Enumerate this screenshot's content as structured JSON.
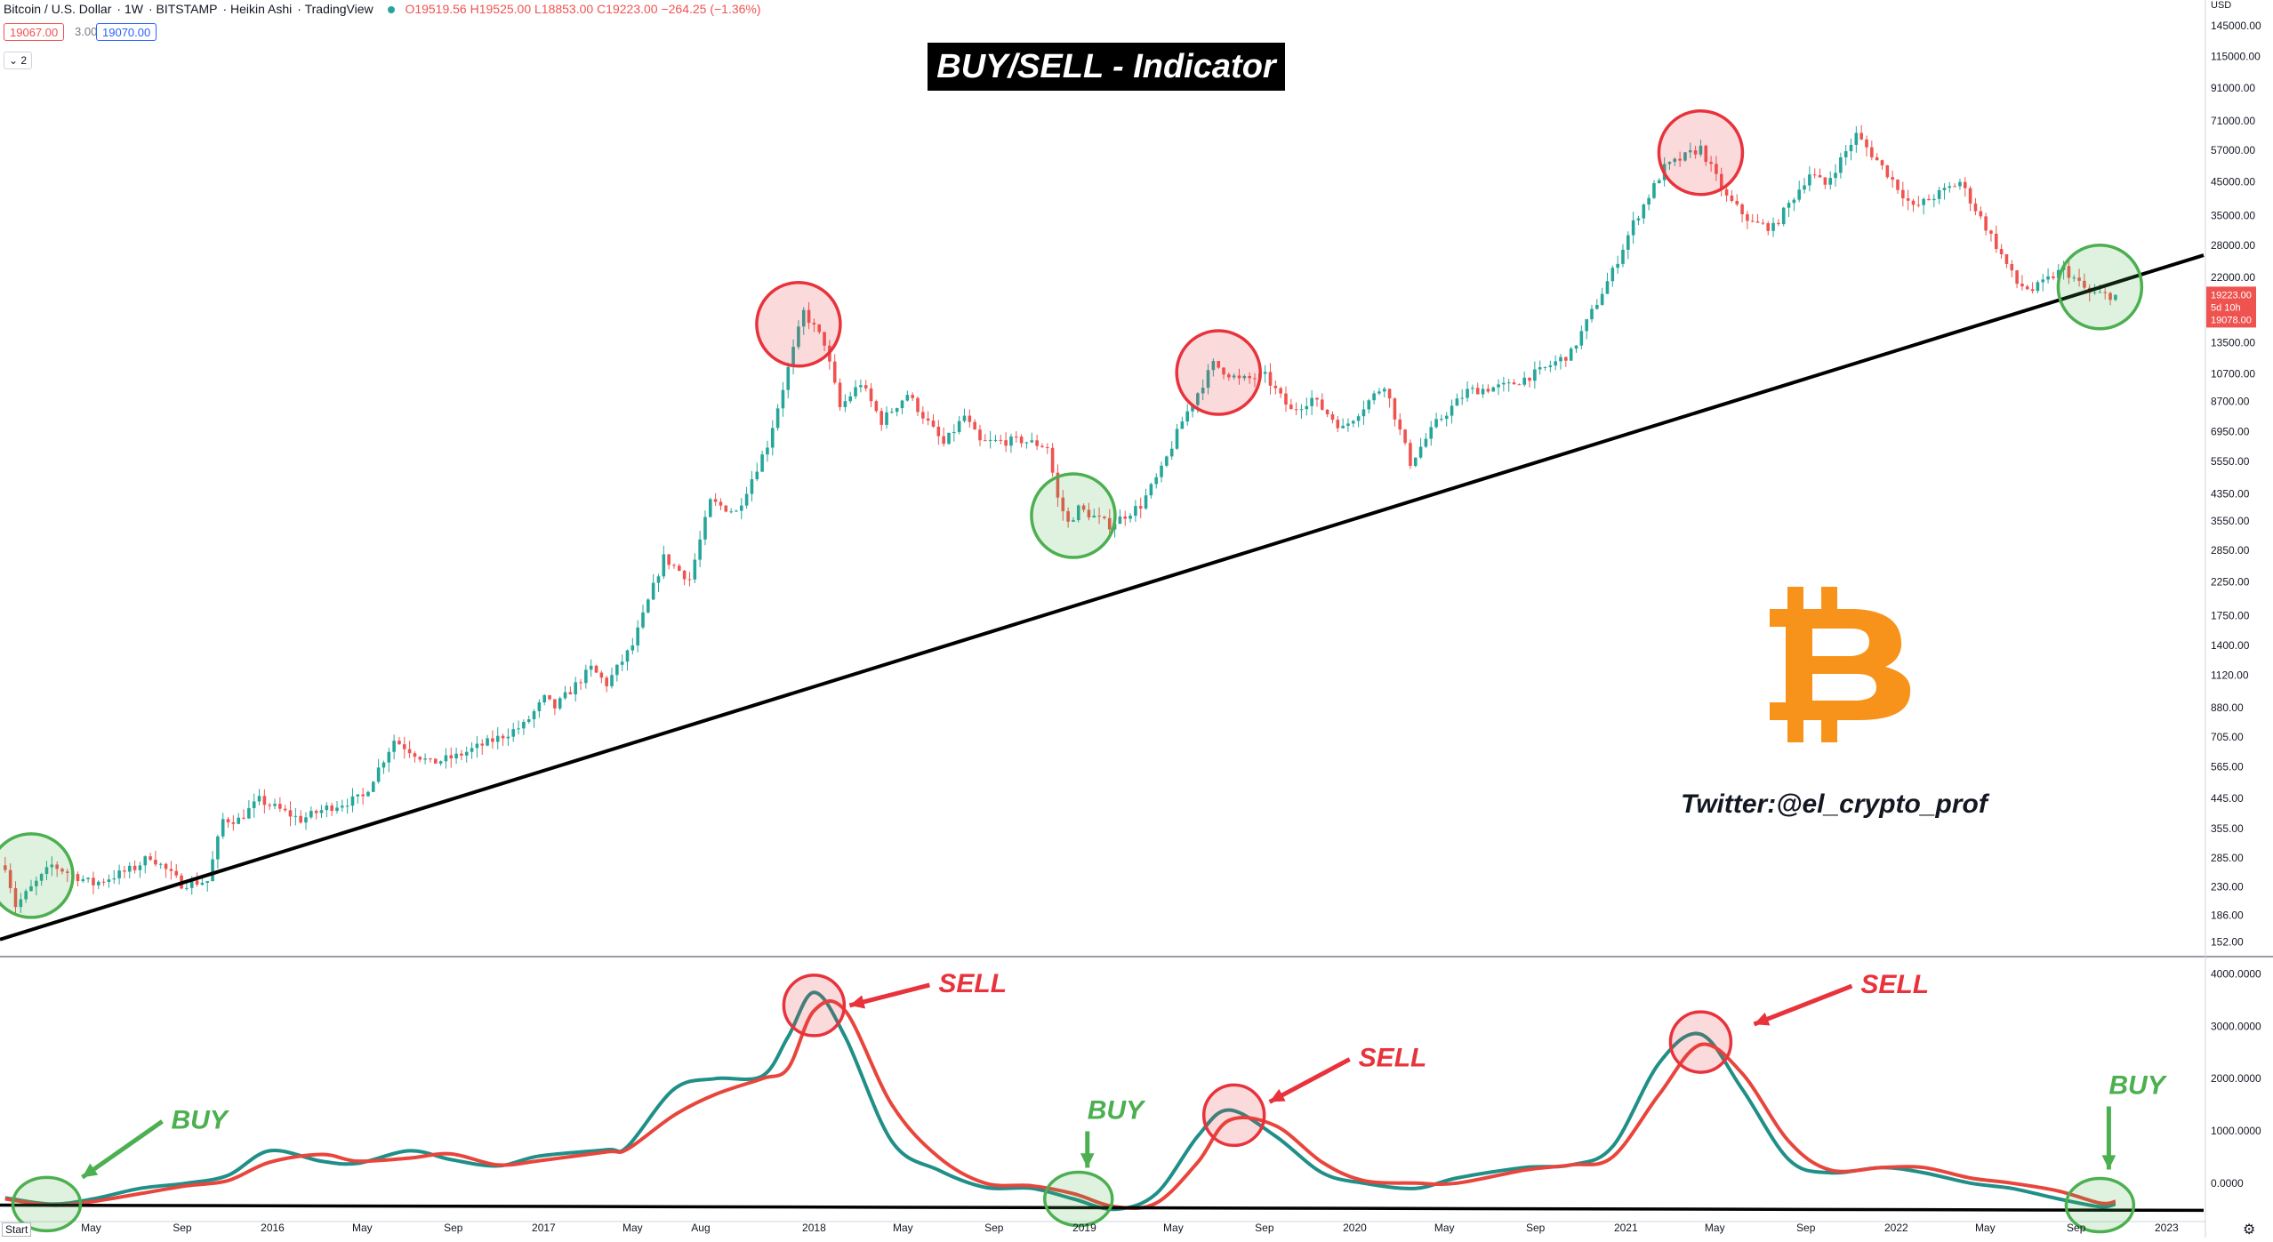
{
  "header": {
    "symbol": "Bitcoin / U.S. Dollar",
    "interval": "1W",
    "exchange": "BITSTAMP",
    "chart_style": "Heikin Ashi",
    "source": "TradingView",
    "ohlc": "O19519.56 H19525.00 L18853.00 C19223.00 −264.25 (−1.36%)"
  },
  "quotes": {
    "bid": "19067.00",
    "spread": "3.00",
    "ask": "19070.00"
  },
  "indicator_toggle": "2",
  "title": "BUY/SELL - Indicator",
  "twitter": "Twitter:@el_crypto_prof",
  "start_button": "Start",
  "currency": "USD",
  "last_price": {
    "price": "19223.00",
    "countdown": "5d 10h",
    "low": "19078.00"
  },
  "colors": {
    "up": "#26a69a",
    "down": "#ef5350",
    "trendline": "#000000",
    "sell_circle": "#e8323c",
    "buy_circle": "#4caf50",
    "bitcoin": "#f7931a",
    "osc_fast": "#1f8f87",
    "osc_slow": "#e8453c"
  },
  "chart_data": [
    {
      "type": "candlestick",
      "title": "BUY/SELL - Indicator",
      "yscale": "log",
      "ylim": [
        140,
        160000
      ],
      "y_tick_labels": [
        "145000.00",
        "115000.00",
        "91000.00",
        "71000.00",
        "57000.00",
        "45000.00",
        "35000.00",
        "28000.00",
        "22000.00",
        "13500.00",
        "10700.00",
        "8700.00",
        "6950.00",
        "5550.00",
        "4350.00",
        "3550.00",
        "2850.00",
        "2250.00",
        "1750.00",
        "1400.00",
        "1120.00",
        "880.00",
        "705.00",
        "565.00",
        "445.00",
        "355.00",
        "285.00",
        "230.00",
        "186.00",
        "152.00"
      ],
      "x_tick_labels": [
        "May",
        "Sep",
        "2016",
        "May",
        "Sep",
        "2017",
        "May",
        "Aug",
        "2018",
        "May",
        "Sep",
        "2019",
        "May",
        "Sep",
        "2020",
        "May",
        "Sep",
        "2021",
        "May",
        "Sep",
        "2022",
        "May",
        "Sep",
        "2023"
      ],
      "price_anchors": [
        {
          "date": "2015-01-05",
          "price": 270
        },
        {
          "date": "2015-01-19",
          "price": 200
        },
        {
          "date": "2015-03-09",
          "price": 270
        },
        {
          "date": "2015-05-04",
          "price": 235
        },
        {
          "date": "2015-06-29",
          "price": 265
        },
        {
          "date": "2015-07-20",
          "price": 290
        },
        {
          "date": "2015-08-31",
          "price": 235
        },
        {
          "date": "2015-10-05",
          "price": 240
        },
        {
          "date": "2015-10-26",
          "price": 380
        },
        {
          "date": "2015-11-16",
          "price": 380
        },
        {
          "date": "2015-12-14",
          "price": 440
        },
        {
          "date": "2016-02-08",
          "price": 380
        },
        {
          "date": "2016-03-14",
          "price": 415
        },
        {
          "date": "2016-05-02",
          "price": 450
        },
        {
          "date": "2016-06-13",
          "price": 690
        },
        {
          "date": "2016-08-01",
          "price": 580
        },
        {
          "date": "2016-09-05",
          "price": 610
        },
        {
          "date": "2016-10-31",
          "price": 700
        },
        {
          "date": "2016-12-05",
          "price": 770
        },
        {
          "date": "2017-01-02",
          "price": 940
        },
        {
          "date": "2017-01-16",
          "price": 880
        },
        {
          "date": "2017-03-06",
          "price": 1180
        },
        {
          "date": "2017-03-27",
          "price": 1050
        },
        {
          "date": "2017-05-01",
          "price": 1400
        },
        {
          "date": "2017-06-12",
          "price": 2700
        },
        {
          "date": "2017-07-17",
          "price": 2300
        },
        {
          "date": "2017-08-14",
          "price": 4100
        },
        {
          "date": "2017-09-18",
          "price": 3800
        },
        {
          "date": "2017-10-30",
          "price": 6300
        },
        {
          "date": "2017-12-18",
          "price": 17000
        },
        {
          "date": "2018-01-15",
          "price": 13500
        },
        {
          "date": "2018-02-05",
          "price": 8300
        },
        {
          "date": "2018-03-05",
          "price": 10000
        },
        {
          "date": "2018-04-02",
          "price": 7500
        },
        {
          "date": "2018-05-07",
          "price": 9200
        },
        {
          "date": "2018-06-25",
          "price": 6300
        },
        {
          "date": "2018-07-23",
          "price": 7800
        },
        {
          "date": "2018-08-13",
          "price": 6400
        },
        {
          "date": "2018-10-08",
          "price": 6500
        },
        {
          "date": "2018-11-12",
          "price": 6200
        },
        {
          "date": "2018-11-26",
          "price": 4200
        },
        {
          "date": "2018-12-10",
          "price": 3500
        },
        {
          "date": "2018-12-24",
          "price": 3900
        },
        {
          "date": "2019-02-04",
          "price": 3450
        },
        {
          "date": "2019-03-18",
          "price": 4000
        },
        {
          "date": "2019-04-15",
          "price": 5200
        },
        {
          "date": "2019-05-13",
          "price": 7500
        },
        {
          "date": "2019-06-24",
          "price": 11500
        },
        {
          "date": "2019-07-29",
          "price": 10200
        },
        {
          "date": "2019-09-02",
          "price": 10500
        },
        {
          "date": "2019-10-07",
          "price": 8100
        },
        {
          "date": "2019-11-04",
          "price": 8900
        },
        {
          "date": "2019-12-16",
          "price": 7100
        },
        {
          "date": "2020-02-10",
          "price": 9900
        },
        {
          "date": "2020-03-16",
          "price": 5500
        },
        {
          "date": "2020-04-20",
          "price": 7400
        },
        {
          "date": "2020-06-01",
          "price": 9400
        },
        {
          "date": "2020-07-27",
          "price": 9800
        },
        {
          "date": "2020-09-07",
          "price": 10900
        },
        {
          "date": "2020-10-19",
          "price": 12500
        },
        {
          "date": "2020-12-14",
          "price": 23000
        },
        {
          "date": "2021-01-11",
          "price": 33000
        },
        {
          "date": "2021-02-22",
          "price": 50000
        },
        {
          "date": "2021-04-12",
          "price": 58000
        },
        {
          "date": "2021-05-17",
          "price": 40000
        },
        {
          "date": "2021-06-21",
          "price": 33000
        },
        {
          "date": "2021-07-19",
          "price": 32000
        },
        {
          "date": "2021-09-06",
          "price": 48000
        },
        {
          "date": "2021-09-27",
          "price": 44000
        },
        {
          "date": "2021-11-08",
          "price": 64000
        },
        {
          "date": "2021-12-20",
          "price": 48000
        },
        {
          "date": "2022-01-24",
          "price": 37000
        },
        {
          "date": "2022-03-28",
          "price": 45000
        },
        {
          "date": "2022-05-09",
          "price": 30000
        },
        {
          "date": "2022-06-13",
          "price": 21000
        },
        {
          "date": "2022-07-04",
          "price": 20000
        },
        {
          "date": "2022-08-15",
          "price": 23500
        },
        {
          "date": "2022-09-19",
          "price": 19500
        },
        {
          "date": "2022-10-24",
          "price": 19200
        }
      ],
      "trendline": [
        {
          "date": "2014-12-29",
          "price": 155
        },
        {
          "date": "2023-02-20",
          "price": 26000
        }
      ],
      "annotations": [
        {
          "kind": "sell",
          "date": "2017-12-11",
          "price": 15500
        },
        {
          "kind": "buy",
          "date": "2018-12-17",
          "price": 3700
        },
        {
          "kind": "sell",
          "date": "2019-07-01",
          "price": 10800
        },
        {
          "kind": "sell",
          "date": "2021-04-12",
          "price": 56000
        },
        {
          "kind": "buy",
          "date": "2022-10-03",
          "price": 20500
        },
        {
          "kind": "buy",
          "date": "2015-02-09",
          "price": 250
        }
      ]
    },
    {
      "type": "line",
      "title": "",
      "ylim": [
        -700,
        4300
      ],
      "y_tick_labels": [
        "4000.0000",
        "3000.0000",
        "2000.0000",
        "1000.0000",
        "0.0000"
      ],
      "series": [
        {
          "color": "#1f8f87",
          "points": [
            {
              "date": "2015-01-05",
              "value": -280
            },
            {
              "date": "2015-03-09",
              "value": -400
            },
            {
              "date": "2015-05-04",
              "value": -300
            },
            {
              "date": "2015-07-06",
              "value": -100
            },
            {
              "date": "2015-09-07",
              "value": 0
            },
            {
              "date": "2015-11-02",
              "value": 150
            },
            {
              "date": "2015-12-28",
              "value": 620
            },
            {
              "date": "2016-03-07",
              "value": 420
            },
            {
              "date": "2016-04-25",
              "value": 380
            },
            {
              "date": "2016-07-04",
              "value": 620
            },
            {
              "date": "2016-08-29",
              "value": 450
            },
            {
              "date": "2016-10-31",
              "value": 330
            },
            {
              "date": "2016-12-26",
              "value": 520
            },
            {
              "date": "2017-03-27",
              "value": 640
            },
            {
              "date": "2017-04-24",
              "value": 700
            },
            {
              "date": "2017-06-26",
              "value": 1800
            },
            {
              "date": "2017-08-21",
              "value": 2000
            },
            {
              "date": "2017-10-23",
              "value": 2050
            },
            {
              "date": "2017-11-27",
              "value": 2800
            },
            {
              "date": "2018-01-01",
              "value": 3650
            },
            {
              "date": "2018-02-12",
              "value": 2800
            },
            {
              "date": "2018-04-16",
              "value": 800
            },
            {
              "date": "2018-06-18",
              "value": 250
            },
            {
              "date": "2018-08-20",
              "value": -80
            },
            {
              "date": "2018-10-22",
              "value": -100
            },
            {
              "date": "2018-12-17",
              "value": -300
            },
            {
              "date": "2019-02-11",
              "value": -500
            },
            {
              "date": "2019-04-08",
              "value": -200
            },
            {
              "date": "2019-06-03",
              "value": 900
            },
            {
              "date": "2019-07-15",
              "value": 1400
            },
            {
              "date": "2019-09-16",
              "value": 900
            },
            {
              "date": "2019-11-18",
              "value": 200
            },
            {
              "date": "2020-01-13",
              "value": 0
            },
            {
              "date": "2020-03-23",
              "value": -100
            },
            {
              "date": "2020-05-18",
              "value": 100
            },
            {
              "date": "2020-08-17",
              "value": 300
            },
            {
              "date": "2020-10-19",
              "value": 350
            },
            {
              "date": "2020-12-14",
              "value": 700
            },
            {
              "date": "2021-02-15",
              "value": 2300
            },
            {
              "date": "2021-04-12",
              "value": 2850
            },
            {
              "date": "2021-06-07",
              "value": 1800
            },
            {
              "date": "2021-08-09",
              "value": 450
            },
            {
              "date": "2021-10-04",
              "value": 200
            },
            {
              "date": "2021-12-13",
              "value": 300
            },
            {
              "date": "2022-02-07",
              "value": 200
            },
            {
              "date": "2022-04-11",
              "value": 0
            },
            {
              "date": "2022-06-06",
              "value": -100
            },
            {
              "date": "2022-08-08",
              "value": -300
            },
            {
              "date": "2022-10-03",
              "value": -450
            },
            {
              "date": "2022-10-24",
              "value": -400
            }
          ]
        },
        {
          "color": "#e8453c",
          "points": [
            {
              "date": "2015-01-05",
              "value": -300
            },
            {
              "date": "2015-03-09",
              "value": -420
            },
            {
              "date": "2015-05-04",
              "value": -350
            },
            {
              "date": "2015-07-06",
              "value": -200
            },
            {
              "date": "2015-09-07",
              "value": -50
            },
            {
              "date": "2015-11-02",
              "value": 50
            },
            {
              "date": "2015-12-28",
              "value": 400
            },
            {
              "date": "2016-03-07",
              "value": 550
            },
            {
              "date": "2016-04-25",
              "value": 420
            },
            {
              "date": "2016-07-04",
              "value": 480
            },
            {
              "date": "2016-08-29",
              "value": 560
            },
            {
              "date": "2016-10-31",
              "value": 350
            },
            {
              "date": "2016-12-26",
              "value": 430
            },
            {
              "date": "2017-03-27",
              "value": 600
            },
            {
              "date": "2017-04-24",
              "value": 650
            },
            {
              "date": "2017-06-26",
              "value": 1300
            },
            {
              "date": "2017-08-21",
              "value": 1700
            },
            {
              "date": "2017-10-23",
              "value": 2000
            },
            {
              "date": "2017-11-27",
              "value": 2200
            },
            {
              "date": "2018-01-01",
              "value": 3300
            },
            {
              "date": "2018-02-12",
              "value": 3300
            },
            {
              "date": "2018-04-16",
              "value": 1500
            },
            {
              "date": "2018-06-18",
              "value": 500
            },
            {
              "date": "2018-08-20",
              "value": 0
            },
            {
              "date": "2018-10-22",
              "value": -50
            },
            {
              "date": "2018-12-17",
              "value": -200
            },
            {
              "date": "2019-02-11",
              "value": -450
            },
            {
              "date": "2019-04-08",
              "value": -380
            },
            {
              "date": "2019-06-03",
              "value": 400
            },
            {
              "date": "2019-07-15",
              "value": 1200
            },
            {
              "date": "2019-09-16",
              "value": 1100
            },
            {
              "date": "2019-11-18",
              "value": 400
            },
            {
              "date": "2020-01-13",
              "value": 50
            },
            {
              "date": "2020-03-23",
              "value": 0
            },
            {
              "date": "2020-05-18",
              "value": 0
            },
            {
              "date": "2020-08-17",
              "value": 250
            },
            {
              "date": "2020-10-19",
              "value": 350
            },
            {
              "date": "2020-12-14",
              "value": 500
            },
            {
              "date": "2021-02-15",
              "value": 1700
            },
            {
              "date": "2021-04-12",
              "value": 2650
            },
            {
              "date": "2021-06-07",
              "value": 2100
            },
            {
              "date": "2021-08-09",
              "value": 800
            },
            {
              "date": "2021-10-04",
              "value": 250
            },
            {
              "date": "2021-12-13",
              "value": 300
            },
            {
              "date": "2022-02-07",
              "value": 300
            },
            {
              "date": "2022-04-11",
              "value": 100
            },
            {
              "date": "2022-06-06",
              "value": 0
            },
            {
              "date": "2022-08-08",
              "value": -150
            },
            {
              "date": "2022-10-03",
              "value": -380
            },
            {
              "date": "2022-10-24",
              "value": -350
            }
          ]
        }
      ],
      "baseline": [
        {
          "date": "2014-12-29",
          "value": -420
        },
        {
          "date": "2023-02-20",
          "value": -520
        }
      ],
      "annotations": [
        {
          "text": "SELL",
          "kind": "sell",
          "date": "2018-01-01",
          "value": 3400
        },
        {
          "text": "BUY",
          "kind": "buy",
          "date": "2018-12-24",
          "value": -300
        },
        {
          "text": "SELL",
          "kind": "sell",
          "date": "2019-07-22",
          "value": 1300
        },
        {
          "text": "SELL",
          "kind": "sell",
          "date": "2021-04-12",
          "value": 2700
        },
        {
          "text": "BUY",
          "kind": "buy",
          "date": "2022-10-03",
          "value": -420
        },
        {
          "text": "BUY",
          "kind": "buy",
          "date": "2015-03-02",
          "value": -400
        }
      ]
    }
  ]
}
